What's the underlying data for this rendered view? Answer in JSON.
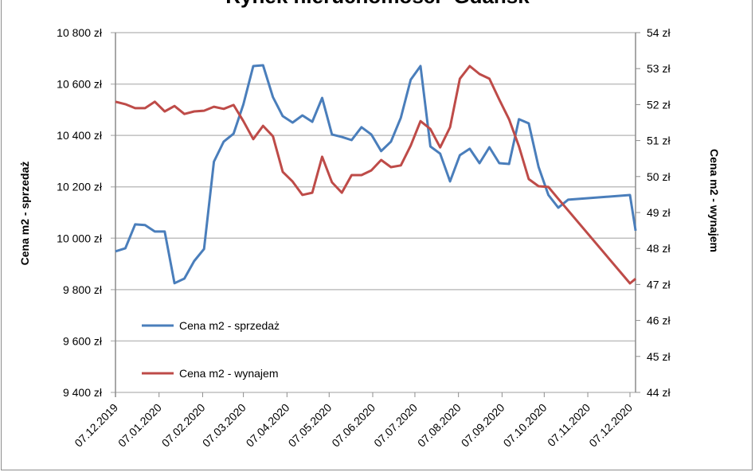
{
  "chart_data": {
    "type": "line",
    "title": "Rynek nieruchomości- Gdańsk",
    "xlabel": "",
    "x_tick_labels": [
      "07.12.2019",
      "07.01.2020",
      "07.02.2020",
      "07.03.2020",
      "07.04.2020",
      "07.05.2020",
      "07.06.2020",
      "07.07.2020",
      "07.08.2020",
      "07.09.2020",
      "07.10.2020",
      "07.11.2020",
      "07.12.2020"
    ],
    "x_tick_days": [
      0,
      31,
      62,
      91,
      122,
      152,
      183,
      213,
      244,
      275,
      305,
      336,
      366
    ],
    "x_range_days": [
      0,
      370
    ],
    "x_unit": "days since 07.12.2019",
    "y_left": {
      "label": "Cena m2 - sprzedaż",
      "range": [
        9400,
        10800
      ],
      "ticks": [
        9400,
        9600,
        9800,
        10000,
        10200,
        10400,
        10600,
        10800
      ],
      "tick_labels": [
        "9 400 zł",
        "9 600 zł",
        "9 800 zł",
        "10 000 zł",
        "10 200 zł",
        "10 400 zł",
        "10 600 zł",
        "10 800 zł"
      ]
    },
    "y_right": {
      "label": "Cena m2 - wynajem",
      "range": [
        44,
        54
      ],
      "ticks": [
        44,
        45,
        46,
        47,
        48,
        49,
        50,
        51,
        52,
        53,
        54
      ],
      "tick_labels": [
        "44 zł",
        "45 zł",
        "46 zł",
        "47 zł",
        "48 zł",
        "49 zł",
        "50 zł",
        "51 zł",
        "52 zł",
        "53 zł",
        "54 zł"
      ]
    },
    "grid": true,
    "legend_position": "bottom-left inside",
    "series": [
      {
        "name": "Cena m2 - sprzedaż",
        "axis": "left",
        "color": "#4a7ebb",
        "x_days": [
          0,
          7,
          14,
          21,
          28,
          35,
          42,
          49,
          56,
          63,
          70,
          77,
          84,
          91,
          98,
          105,
          112,
          119,
          126,
          133,
          140,
          147,
          154,
          161,
          168,
          175,
          182,
          189,
          196,
          203,
          210,
          217,
          224,
          231,
          238,
          245,
          252,
          259,
          266,
          273,
          280,
          287,
          294,
          301,
          308,
          315,
          322,
          366,
          370
        ],
        "values": [
          9949,
          9961,
          10054,
          10051,
          10026,
          10026,
          9825,
          9843,
          9911,
          9958,
          10298,
          10376,
          10407,
          10521,
          10670,
          10673,
          10549,
          10475,
          10450,
          10478,
          10453,
          10546,
          10404,
          10394,
          10382,
          10432,
          10404,
          10339,
          10376,
          10469,
          10617,
          10670,
          10357,
          10329,
          10221,
          10323,
          10348,
          10292,
          10354,
          10292,
          10289,
          10463,
          10447,
          10277,
          10168,
          10119,
          10150,
          10168,
          10029
        ]
      },
      {
        "name": "Cena m2 - wynajem",
        "axis": "right",
        "color": "#be4b48",
        "x_days": [
          0,
          7,
          14,
          21,
          28,
          35,
          42,
          49,
          56,
          63,
          70,
          77,
          84,
          91,
          98,
          105,
          112,
          119,
          126,
          133,
          140,
          147,
          154,
          161,
          168,
          175,
          182,
          189,
          196,
          203,
          210,
          217,
          224,
          231,
          238,
          245,
          252,
          259,
          266,
          273,
          280,
          287,
          294,
          301,
          308,
          315,
          366,
          370
        ],
        "values": [
          52.08,
          52.01,
          51.9,
          51.9,
          52.08,
          51.81,
          51.96,
          51.74,
          51.81,
          51.83,
          51.94,
          51.88,
          51.99,
          51.54,
          51.04,
          51.41,
          51.12,
          50.13,
          49.86,
          49.49,
          49.55,
          50.55,
          49.84,
          49.55,
          50.04,
          50.04,
          50.17,
          50.46,
          50.26,
          50.31,
          50.86,
          51.54,
          51.32,
          50.81,
          51.37,
          52.72,
          53.07,
          52.85,
          52.72,
          52.14,
          51.59,
          50.84,
          49.93,
          49.73,
          49.71,
          49.38,
          47.03,
          47.16
        ]
      }
    ]
  }
}
